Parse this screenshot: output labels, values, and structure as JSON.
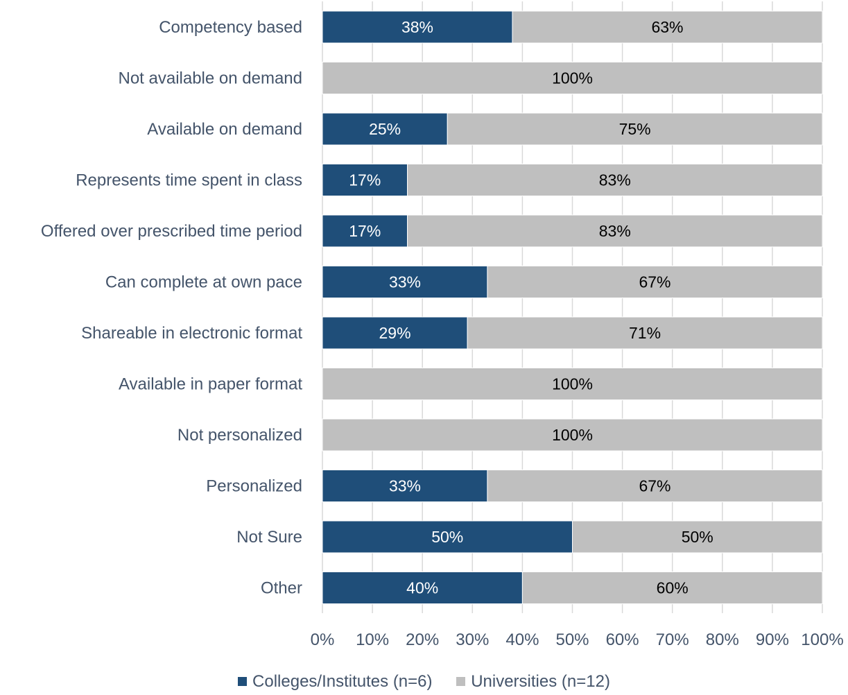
{
  "chart_data": {
    "type": "bar",
    "orientation": "horizontal",
    "stacked": true,
    "categories": [
      "Competency based",
      "Not available on demand",
      "Available on demand",
      "Represents time spent in class",
      "Offered over prescribed time period",
      "Can complete at own pace",
      "Shareable in electronic format",
      "Available in paper format",
      "Not personalized",
      "Personalized",
      "Not Sure",
      "Other"
    ],
    "series": [
      {
        "name": "Colleges/Institutes (n=6)",
        "color": "#1f4e79",
        "label_color": "#ffffff",
        "values": [
          38,
          0,
          25,
          17,
          17,
          33,
          29,
          0,
          0,
          33,
          50,
          40
        ],
        "labels": [
          "38%",
          "",
          "25%",
          "17%",
          "17%",
          "33%",
          "29%",
          "",
          "",
          "33%",
          "50%",
          "40%"
        ]
      },
      {
        "name": "Universities (n=12)",
        "color": "#bfbfbf",
        "label_color": "#000000",
        "values": [
          63,
          100,
          75,
          83,
          83,
          67,
          71,
          100,
          100,
          67,
          50,
          60
        ],
        "labels": [
          "63%",
          "100%",
          "75%",
          "83%",
          "83%",
          "67%",
          "71%",
          "100%",
          "100%",
          "67%",
          "50%",
          "60%"
        ]
      }
    ],
    "xlim": [
      0,
      100
    ],
    "x_ticks": [
      "0%",
      "10%",
      "20%",
      "30%",
      "40%",
      "50%",
      "60%",
      "70%",
      "80%",
      "90%",
      "100%"
    ],
    "grid": "vertical",
    "legend_position": "bottom",
    "title": "",
    "xlabel": "",
    "ylabel": ""
  }
}
